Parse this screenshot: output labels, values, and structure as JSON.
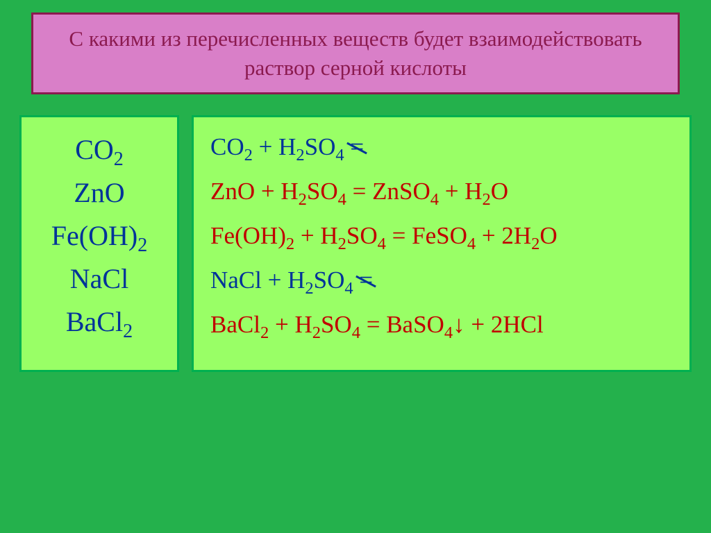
{
  "title": "С какими из перечисленных веществ будет взаимодействовать раствор серной кислоты",
  "left_panel": {
    "items": [
      "CO2",
      "ZnO",
      "Fe(OH)2",
      "NaCl",
      "BaCl2"
    ],
    "text_color": "#003399",
    "panel_bg": "#99ff66",
    "panel_border": "#00b050",
    "font_size": 40
  },
  "right_panel": {
    "panel_bg": "#99ff66",
    "panel_border": "#00b050",
    "font_size": 35,
    "equations": [
      {
        "display": "CO2 + H2SO4 =",
        "reacts": false,
        "color": "#003399"
      },
      {
        "display": "ZnO + H2SO4 = ZnSO4 + H2O",
        "reacts": true,
        "color": "#c00000"
      },
      {
        "display": "Fe(OH)2 + H2SO4 = FeSO4 + 2H2O",
        "reacts": true,
        "color": "#c00000"
      },
      {
        "display": "NaCl + H2SO4 =",
        "reacts": false,
        "color": "#003399"
      },
      {
        "display": "BaCl2 + H2SO4 = BaSO4↓ + 2HCl",
        "reacts": true,
        "color": "#c00000"
      }
    ]
  },
  "title_box": {
    "bg": "#d97fc8",
    "border": "#8b1a4f",
    "text_color": "#8b1a4f",
    "font_size": 31
  },
  "page_bg": "#24b14c"
}
